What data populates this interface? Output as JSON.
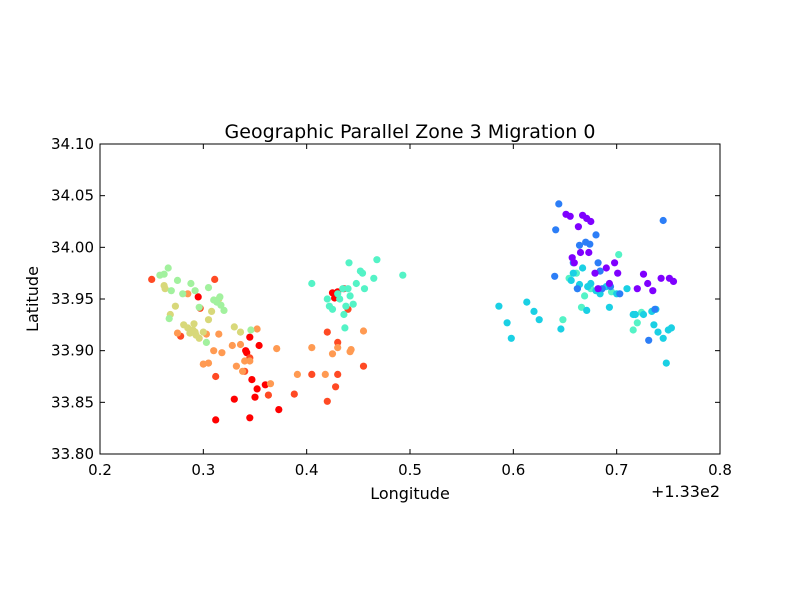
{
  "chart_data": {
    "type": "scatter",
    "title": "Geographic Parallel Zone 3 Migration 0",
    "xlabel": "Longitude",
    "ylabel": "Latitude",
    "x_offset_label": "+1.33e2",
    "xlim": [
      0.2,
      0.8
    ],
    "ylim": [
      33.8,
      34.1
    ],
    "x_ticks": [
      0.2,
      0.3,
      0.4,
      0.5,
      0.6,
      0.7,
      0.8
    ],
    "x_tick_labels": [
      "0.2",
      "0.3",
      "0.4",
      "0.5",
      "0.6",
      "0.7",
      "0.8"
    ],
    "y_ticks": [
      33.8,
      33.85,
      33.9,
      33.95,
      34.0,
      34.05,
      34.1
    ],
    "y_tick_labels": [
      "33.80",
      "33.85",
      "33.90",
      "33.95",
      "34.00",
      "34.05",
      "34.10"
    ],
    "grid": false,
    "legend": "none",
    "colormap": "rainbow",
    "series": [
      {
        "color": "#ff0000",
        "points": [
          [
            0.295,
            33.952
          ],
          [
            0.312,
            33.833
          ],
          [
            0.33,
            33.853
          ],
          [
            0.341,
            33.9
          ],
          [
            0.342,
            33.898
          ],
          [
            0.345,
            33.913
          ],
          [
            0.345,
            33.835
          ],
          [
            0.347,
            33.872
          ],
          [
            0.35,
            33.855
          ],
          [
            0.352,
            33.863
          ],
          [
            0.354,
            33.905
          ],
          [
            0.36,
            33.867
          ],
          [
            0.373,
            33.843
          ],
          [
            0.425,
            33.956
          ],
          [
            0.427,
            33.951
          ],
          [
            0.43,
            33.957
          ],
          [
            0.436,
            33.96
          ]
        ]
      },
      {
        "color": "#ff4a24",
        "points": [
          [
            0.25,
            33.969
          ],
          [
            0.278,
            33.914
          ],
          [
            0.297,
            33.941
          ],
          [
            0.311,
            33.969
          ],
          [
            0.312,
            33.875
          ],
          [
            0.34,
            33.88
          ],
          [
            0.345,
            33.893
          ],
          [
            0.363,
            33.857
          ],
          [
            0.388,
            33.858
          ],
          [
            0.405,
            33.877
          ],
          [
            0.42,
            33.918
          ],
          [
            0.42,
            33.851
          ],
          [
            0.428,
            33.865
          ],
          [
            0.43,
            33.877
          ],
          [
            0.43,
            33.908
          ],
          [
            0.44,
            33.94
          ],
          [
            0.455,
            33.885
          ]
        ]
      },
      {
        "color": "#ff9a52",
        "points": [
          [
            0.275,
            33.917
          ],
          [
            0.285,
            33.955
          ],
          [
            0.3,
            33.887
          ],
          [
            0.303,
            33.916
          ],
          [
            0.305,
            33.888
          ],
          [
            0.31,
            33.9
          ],
          [
            0.315,
            33.916
          ],
          [
            0.318,
            33.898
          ],
          [
            0.328,
            33.905
          ],
          [
            0.332,
            33.885
          ],
          [
            0.336,
            33.906
          ],
          [
            0.338,
            33.88
          ],
          [
            0.34,
            33.89
          ],
          [
            0.345,
            33.89
          ],
          [
            0.352,
            33.921
          ],
          [
            0.365,
            33.868
          ],
          [
            0.371,
            33.902
          ],
          [
            0.391,
            33.877
          ],
          [
            0.405,
            33.903
          ],
          [
            0.418,
            33.877
          ],
          [
            0.425,
            33.897
          ],
          [
            0.43,
            33.903
          ],
          [
            0.442,
            33.899
          ],
          [
            0.443,
            33.901
          ],
          [
            0.455,
            33.919
          ]
        ]
      },
      {
        "color": "#d8d87a",
        "points": [
          [
            0.262,
            33.963
          ],
          [
            0.263,
            33.96
          ],
          [
            0.268,
            33.935
          ],
          [
            0.273,
            33.943
          ],
          [
            0.281,
            33.925
          ],
          [
            0.285,
            33.922
          ],
          [
            0.287,
            33.917
          ],
          [
            0.29,
            33.92
          ],
          [
            0.291,
            33.926
          ],
          [
            0.292,
            33.918
          ],
          [
            0.293,
            33.915
          ],
          [
            0.296,
            33.912
          ],
          [
            0.3,
            33.918
          ],
          [
            0.305,
            33.93
          ],
          [
            0.308,
            33.938
          ],
          [
            0.315,
            33.95
          ],
          [
            0.33,
            33.923
          ],
          [
            0.336,
            33.918
          ]
        ]
      },
      {
        "color": "#a2f19e",
        "points": [
          [
            0.258,
            33.973
          ],
          [
            0.262,
            33.974
          ],
          [
            0.266,
            33.98
          ],
          [
            0.267,
            33.931
          ],
          [
            0.269,
            33.958
          ],
          [
            0.275,
            33.968
          ],
          [
            0.28,
            33.955
          ],
          [
            0.288,
            33.965
          ],
          [
            0.292,
            33.958
          ],
          [
            0.296,
            33.942
          ],
          [
            0.303,
            33.908
          ],
          [
            0.305,
            33.961
          ],
          [
            0.31,
            33.949
          ],
          [
            0.313,
            33.947
          ],
          [
            0.316,
            33.952
          ],
          [
            0.317,
            33.944
          ],
          [
            0.32,
            33.939
          ],
          [
            0.346,
            33.92
          ]
        ]
      },
      {
        "color": "#54f3c6",
        "points": [
          [
            0.405,
            33.965
          ],
          [
            0.42,
            33.95
          ],
          [
            0.422,
            33.943
          ],
          [
            0.425,
            33.94
          ],
          [
            0.43,
            33.955
          ],
          [
            0.432,
            33.95
          ],
          [
            0.435,
            33.96
          ],
          [
            0.436,
            33.935
          ],
          [
            0.437,
            33.922
          ],
          [
            0.438,
            33.943
          ],
          [
            0.44,
            33.96
          ],
          [
            0.442,
            33.953
          ],
          [
            0.441,
            33.985
          ],
          [
            0.445,
            33.945
          ],
          [
            0.448,
            33.965
          ],
          [
            0.452,
            33.977
          ],
          [
            0.454,
            33.975
          ],
          [
            0.456,
            33.96
          ],
          [
            0.465,
            33.97
          ],
          [
            0.468,
            33.988
          ],
          [
            0.493,
            33.973
          ],
          [
            0.648,
            33.93
          ],
          [
            0.654,
            33.97
          ],
          [
            0.661,
            33.975
          ],
          [
            0.666,
            33.942
          ],
          [
            0.669,
            33.953
          ],
          [
            0.675,
            33.96
          ],
          [
            0.695,
            33.957
          ],
          [
            0.702,
            33.993
          ],
          [
            0.716,
            33.92
          ],
          [
            0.72,
            33.927
          ],
          [
            0.724,
            33.937
          ]
        ]
      },
      {
        "color": "#1ad0e4",
        "points": [
          [
            0.586,
            33.943
          ],
          [
            0.594,
            33.927
          ],
          [
            0.598,
            33.912
          ],
          [
            0.613,
            33.947
          ],
          [
            0.62,
            33.938
          ],
          [
            0.625,
            33.93
          ],
          [
            0.646,
            33.921
          ],
          [
            0.656,
            33.968
          ],
          [
            0.658,
            33.975
          ],
          [
            0.662,
            33.96
          ],
          [
            0.664,
            33.964
          ],
          [
            0.667,
            33.98
          ],
          [
            0.671,
            33.939
          ],
          [
            0.672,
            33.962
          ],
          [
            0.675,
            33.965
          ],
          [
            0.68,
            33.958
          ],
          [
            0.684,
            33.955
          ],
          [
            0.69,
            33.962
          ],
          [
            0.693,
            33.942
          ],
          [
            0.7,
            33.955
          ],
          [
            0.71,
            33.96
          ],
          [
            0.716,
            33.935
          ],
          [
            0.718,
            33.935
          ],
          [
            0.726,
            33.935
          ],
          [
            0.734,
            33.938
          ],
          [
            0.736,
            33.925
          ],
          [
            0.738,
            33.94
          ],
          [
            0.74,
            33.918
          ],
          [
            0.745,
            33.912
          ],
          [
            0.748,
            33.888
          ],
          [
            0.75,
            33.92
          ],
          [
            0.753,
            33.922
          ]
        ]
      },
      {
        "color": "#2c7ef7",
        "points": [
          [
            0.64,
            33.972
          ],
          [
            0.641,
            34.017
          ],
          [
            0.644,
            34.042
          ],
          [
            0.658,
            33.985
          ],
          [
            0.662,
            33.96
          ],
          [
            0.664,
            34.002
          ],
          [
            0.67,
            34.005
          ],
          [
            0.674,
            34.003
          ],
          [
            0.68,
            34.012
          ],
          [
            0.682,
            33.985
          ],
          [
            0.684,
            33.977
          ],
          [
            0.686,
            33.96
          ],
          [
            0.694,
            33.962
          ],
          [
            0.703,
            33.955
          ],
          [
            0.731,
            33.91
          ],
          [
            0.737,
            33.94
          ],
          [
            0.745,
            34.026
          ]
        ]
      },
      {
        "color": "#7f00ff",
        "points": [
          [
            0.651,
            34.032
          ],
          [
            0.655,
            34.03
          ],
          [
            0.657,
            33.99
          ],
          [
            0.659,
            33.985
          ],
          [
            0.663,
            34.02
          ],
          [
            0.665,
            33.995
          ],
          [
            0.667,
            34.031
          ],
          [
            0.671,
            34.028
          ],
          [
            0.673,
            33.995
          ],
          [
            0.675,
            34.025
          ],
          [
            0.679,
            33.975
          ],
          [
            0.682,
            33.96
          ],
          [
            0.69,
            33.98
          ],
          [
            0.693,
            33.965
          ],
          [
            0.698,
            33.985
          ],
          [
            0.701,
            33.975
          ],
          [
            0.72,
            33.96
          ],
          [
            0.726,
            33.974
          ],
          [
            0.73,
            33.965
          ],
          [
            0.735,
            33.958
          ],
          [
            0.743,
            33.97
          ],
          [
            0.751,
            33.97
          ],
          [
            0.755,
            33.967
          ]
        ]
      }
    ]
  }
}
